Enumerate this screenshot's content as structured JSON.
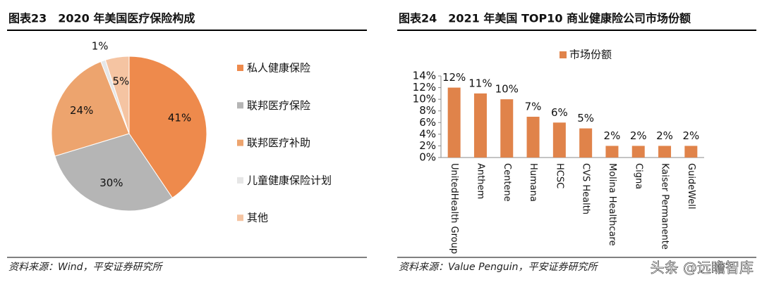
{
  "chart_data": [
    {
      "type": "pie",
      "title": "图表23　2020 年美国医疗保险构成",
      "categories": [
        "私人健康保险",
        "联邦医疗保险",
        "联邦医疗补助",
        "儿童健康保险计划",
        "其他"
      ],
      "values": [
        41,
        30,
        24,
        1,
        5
      ],
      "value_labels": [
        "41%",
        "30%",
        "24%",
        "1%",
        "5%"
      ],
      "colors": [
        "#ee8a4c",
        "#b5b5b5",
        "#eda46e",
        "#e6e6e6",
        "#f5c4a2"
      ],
      "legend": "right",
      "source": "资料来源：Wind，平安证券研究所"
    },
    {
      "type": "bar",
      "title": "图表24　2021 年美国 TOP10 商业健康险公司市场份额",
      "categories": [
        "UnitedHealth Group",
        "Anthem",
        "Centene",
        "Humana",
        "HCSC",
        "CVS Health",
        "Molina Healthcare",
        "Cigna",
        "Kaiser Permanente",
        "GuideWell"
      ],
      "series": [
        {
          "name": "市场份额",
          "color": "#e0834a",
          "values": [
            12,
            11,
            10,
            7,
            6,
            5,
            2,
            2,
            2,
            2
          ],
          "value_labels": [
            "12%",
            "11%",
            "10%",
            "7%",
            "6%",
            "5%",
            "2%",
            "2%",
            "2%",
            "2%"
          ]
        }
      ],
      "ylim": [
        0,
        14
      ],
      "yticks": [
        {
          "value": 0,
          "label": "0%"
        },
        {
          "value": 2,
          "label": "2%"
        },
        {
          "value": 4,
          "label": "4%"
        },
        {
          "value": 6,
          "label": "6%"
        },
        {
          "value": 8,
          "label": "8%"
        },
        {
          "value": 10,
          "label": "10%"
        },
        {
          "value": 12,
          "label": "12%"
        },
        {
          "value": 14,
          "label": "14%"
        }
      ],
      "legend": "top",
      "source": "资料来源：Value Penguin，平安证券研究所"
    }
  ],
  "watermark": "头条 @远瞻智库"
}
